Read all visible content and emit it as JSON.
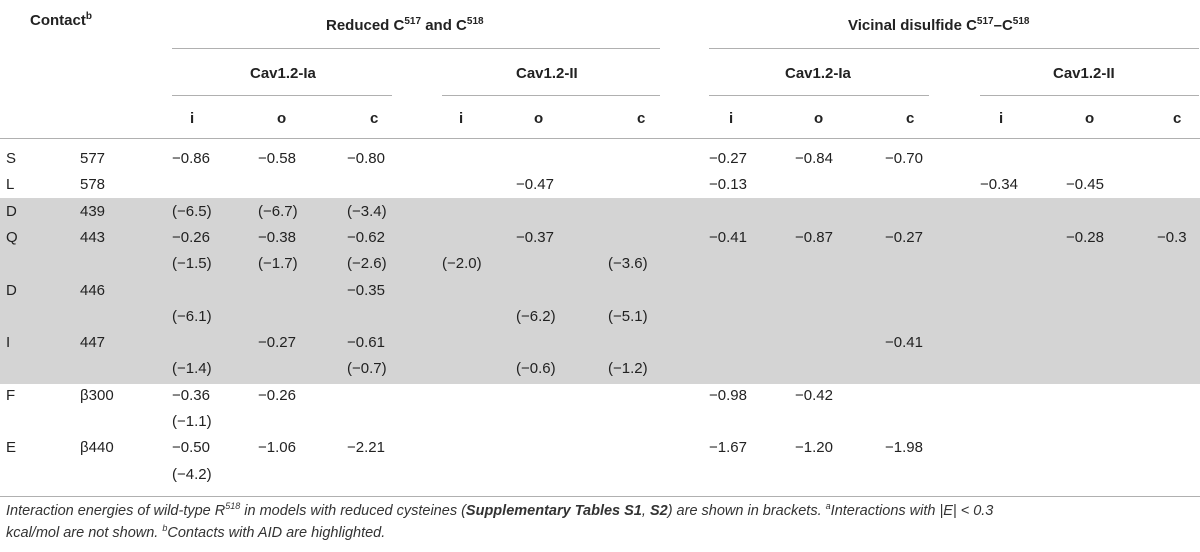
{
  "header": {
    "contact_label": "Contact",
    "contact_sup": "b",
    "group_reduced": {
      "pre": "Reduced C",
      "sup1": "517",
      "mid": " and C",
      "sup2": "518"
    },
    "group_vicinal": {
      "pre": "Vicinal disulfide C",
      "sup1": "517",
      "mid": "–C",
      "sup2": "518"
    },
    "sub_headers": [
      "Cav1.2-Ia",
      "Cav1.2-II",
      "Cav1.2-Ia",
      "Cav1.2-II"
    ],
    "columns": [
      "i",
      "o",
      "c",
      "i",
      "o",
      "c",
      "i",
      "o",
      "c",
      "i",
      "o",
      "c"
    ]
  },
  "rows": [
    {
      "res": "S",
      "num": "577",
      "cells": [
        "−0.86",
        "−0.58",
        "−0.80",
        "",
        "",
        "",
        "−0.27",
        "−0.84",
        "−0.70",
        "",
        "",
        ""
      ]
    },
    {
      "res": "L",
      "num": "578",
      "cells": [
        "",
        "",
        "",
        "",
        "−0.47",
        "",
        "−0.13",
        "",
        "",
        "−0.34",
        "−0.45",
        ""
      ]
    },
    {
      "res": "D",
      "num": "439",
      "cells": [
        "(−6.5)",
        "(−6.7)",
        "(−3.4)",
        "",
        "",
        "",
        "",
        "",
        "",
        "",
        "",
        ""
      ]
    },
    {
      "res": "Q",
      "num": "443",
      "cells": [
        "−0.26",
        "−0.38",
        "−0.62",
        "",
        "−0.37",
        "",
        "−0.41",
        "−0.87",
        "−0.27",
        "",
        "−0.28",
        "−0.3"
      ]
    },
    {
      "res": "",
      "num": "",
      "cells": [
        "(−1.5)",
        "(−1.7)",
        "(−2.6)",
        "(−2.0)",
        "",
        "(−3.6)",
        "",
        "",
        "",
        "",
        "",
        ""
      ]
    },
    {
      "res": "D",
      "num": "446",
      "cells": [
        "",
        "",
        "−0.35",
        "",
        "",
        "",
        "",
        "",
        "",
        "",
        "",
        ""
      ]
    },
    {
      "res": "",
      "num": "",
      "cells": [
        "(−6.1)",
        "",
        "",
        "",
        "(−6.2)",
        "(−5.1)",
        "",
        "",
        "",
        "",
        "",
        ""
      ]
    },
    {
      "res": "I",
      "num": "447",
      "cells": [
        "",
        "−0.27",
        "−0.61",
        "",
        "",
        "",
        "",
        "",
        "−0.41",
        "",
        "",
        ""
      ]
    },
    {
      "res": "",
      "num": "",
      "cells": [
        "(−1.4)",
        "",
        "(−0.7)",
        "",
        "(−0.6)",
        "(−1.2)",
        "",
        "",
        "",
        "",
        "",
        ""
      ]
    },
    {
      "res": "F",
      "num": "β300",
      "cells": [
        "−0.36",
        "−0.26",
        "",
        "",
        "",
        "",
        "−0.98",
        "−0.42",
        "",
        "",
        "",
        ""
      ]
    },
    {
      "res": "",
      "num": "",
      "cells": [
        "(−1.1)",
        "",
        "",
        "",
        "",
        "",
        "",
        "",
        "",
        "",
        "",
        ""
      ]
    },
    {
      "res": "E",
      "num": "β440",
      "cells": [
        "−0.50",
        "−1.06",
        "−2.21",
        "",
        "",
        "",
        "−1.67",
        "−1.20",
        "−1.98",
        "",
        "",
        ""
      ]
    },
    {
      "res": "",
      "num": "",
      "cells": [
        "(−4.2)",
        "",
        "",
        "",
        "",
        "",
        "",
        "",
        "",
        "",
        "",
        ""
      ]
    }
  ],
  "caption": {
    "t1": "Interaction energies of wild-type R",
    "t1_sup": "518",
    "t2": " in models with reduced cysteines (",
    "b1": "Supplementary Tables S1",
    "t3": ", ",
    "b2": "S2",
    "t4": ") are shown in brackets. ",
    "sup_a": "a",
    "t5": "Interactions with |E| < 0.3",
    "line2a": "kcal/mol are not shown. ",
    "sup_b": "b",
    "line2b": "Contacts with AID are highlighted."
  }
}
